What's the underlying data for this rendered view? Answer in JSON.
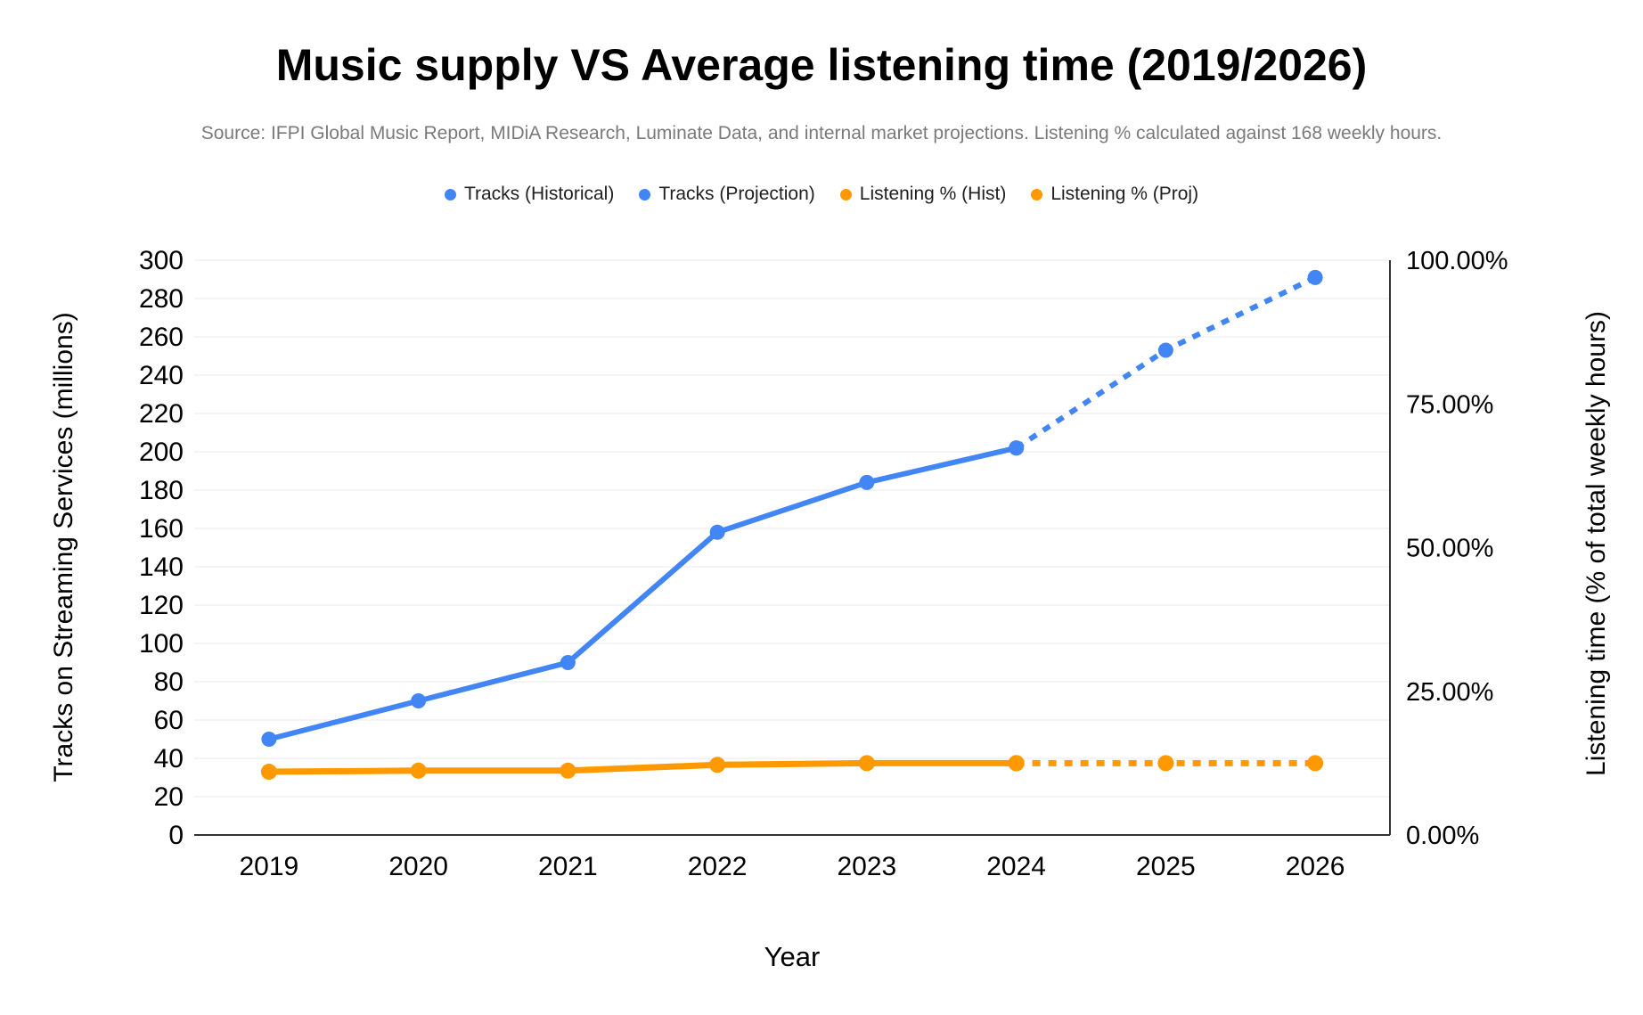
{
  "chart_data": {
    "type": "line",
    "title": "Music supply VS Average listening time (2019/2026)",
    "subtitle": "Source: IFPI Global Music Report, MIDiA Research, Luminate Data, and internal market projections. Listening % calculated against 168 weekly hours.",
    "legend_position": "top",
    "grid": true,
    "x_axis_label": "Year",
    "x_categories": [
      "2019",
      "2020",
      "2021",
      "2022",
      "2023",
      "2024",
      "2025",
      "2026"
    ],
    "left_axis": {
      "label": "Tracks on Streaming Services (millions)",
      "min": 0,
      "max": 300,
      "tick_values": [
        0,
        20,
        40,
        60,
        80,
        100,
        120,
        140,
        160,
        180,
        200,
        220,
        240,
        260,
        280,
        300
      ],
      "tick_labels": [
        "0",
        "20",
        "40",
        "60",
        "80",
        "100",
        "120",
        "140",
        "160",
        "180",
        "200",
        "220",
        "240",
        "260",
        "280",
        "300"
      ]
    },
    "right_axis": {
      "label": "Listening time (% of total weekly hours)",
      "min": 0,
      "max": 100,
      "tick_values": [
        0,
        25,
        50,
        75,
        100
      ],
      "tick_labels": [
        "0.00%",
        "25.00%",
        "50.00%",
        "75.00%",
        "100.00%"
      ]
    },
    "series": [
      {
        "name": "Tracks (Historical)",
        "axis": "left",
        "color": "#4285F4",
        "line": "solid",
        "years": [
          2019,
          2020,
          2021,
          2022,
          2023,
          2024
        ],
        "values": [
          50,
          70,
          90,
          158,
          184,
          202
        ]
      },
      {
        "name": "Tracks (Projection)",
        "axis": "left",
        "color": "#4285F4",
        "line": "dotted",
        "years": [
          2024,
          2025,
          2026
        ],
        "values": [
          202,
          253,
          291
        ]
      },
      {
        "name": "Listening % (Hist)",
        "axis": "right",
        "color": "#FF9900",
        "line": "solid",
        "years": [
          2019,
          2020,
          2021,
          2022,
          2023,
          2024
        ],
        "values": [
          11.0,
          11.2,
          11.2,
          12.2,
          12.5,
          12.5
        ]
      },
      {
        "name": "Listening % (Proj)",
        "axis": "right",
        "color": "#FF9900",
        "line": "dotted",
        "years": [
          2024,
          2025,
          2026
        ],
        "values": [
          12.5,
          12.5,
          12.5
        ]
      }
    ],
    "colors": {
      "gridline": "#e8e8e8",
      "axis_line": "#333333",
      "background": "#ffffff"
    }
  }
}
